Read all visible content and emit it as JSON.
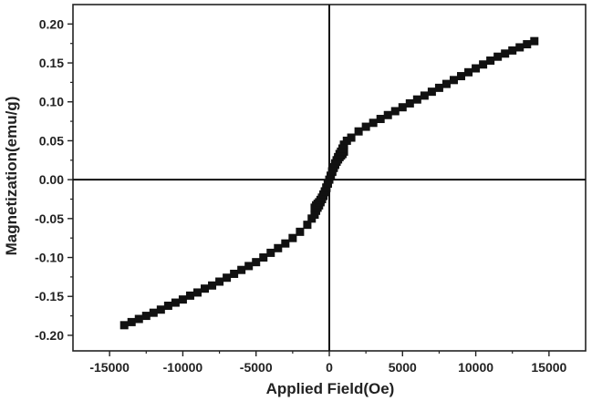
{
  "chart_data": {
    "type": "scatter",
    "title": "",
    "xlabel": "Applied Field(Oe)",
    "ylabel": "Magnetization(emu/g)",
    "xlim": [
      -17500,
      17500
    ],
    "ylim": [
      -0.22,
      0.225
    ],
    "x_ticks": [
      -15000,
      -10000,
      -5000,
      0,
      5000,
      10000,
      15000
    ],
    "y_ticks": [
      -0.2,
      -0.15,
      -0.1,
      -0.05,
      0.0,
      0.05,
      0.1,
      0.15,
      0.2
    ],
    "x_tick_labels": [
      "-15000",
      "-10000",
      "-5000",
      "0",
      "5000",
      "10000",
      "15000"
    ],
    "y_tick_labels": [
      "-0.20",
      "-0.15",
      "-0.10",
      "-0.05",
      "0.00",
      "0.05",
      "0.10",
      "0.15",
      "0.20"
    ],
    "zero_lines": true,
    "grid": false,
    "marker": "square",
    "marker_color": "#111111",
    "series": [
      {
        "name": "",
        "points": [
          [
            -14000,
            -0.187
          ],
          [
            -13500,
            -0.183
          ],
          [
            -13000,
            -0.179
          ],
          [
            -12500,
            -0.175
          ],
          [
            -12000,
            -0.171
          ],
          [
            -11500,
            -0.167
          ],
          [
            -11000,
            -0.162
          ],
          [
            -10500,
            -0.158
          ],
          [
            -10000,
            -0.154
          ],
          [
            -9500,
            -0.149
          ],
          [
            -9000,
            -0.145
          ],
          [
            -8500,
            -0.14
          ],
          [
            -8000,
            -0.136
          ],
          [
            -7500,
            -0.131
          ],
          [
            -7000,
            -0.126
          ],
          [
            -6500,
            -0.121
          ],
          [
            -6000,
            -0.116
          ],
          [
            -5500,
            -0.111
          ],
          [
            -5000,
            -0.106
          ],
          [
            -4500,
            -0.1
          ],
          [
            -4000,
            -0.094
          ],
          [
            -3500,
            -0.088
          ],
          [
            -3000,
            -0.082
          ],
          [
            -2500,
            -0.075
          ],
          [
            -2000,
            -0.067
          ],
          [
            -1500,
            -0.058
          ],
          [
            -1200,
            -0.05
          ],
          [
            -1000,
            -0.045
          ],
          [
            -900,
            -0.04
          ],
          [
            -800,
            -0.036
          ],
          [
            -700,
            -0.033
          ],
          [
            -600,
            -0.029
          ],
          [
            -500,
            -0.025
          ],
          [
            -400,
            -0.021
          ],
          [
            -300,
            -0.016
          ],
          [
            -200,
            -0.011
          ],
          [
            -100,
            -0.005
          ],
          [
            0,
            0.0
          ],
          [
            100,
            0.005
          ],
          [
            200,
            0.01
          ],
          [
            300,
            0.015
          ],
          [
            400,
            0.019
          ],
          [
            500,
            0.023
          ],
          [
            600,
            0.026
          ],
          [
            700,
            0.029
          ],
          [
            800,
            0.031
          ],
          [
            900,
            0.033
          ],
          [
            1000,
            0.036
          ],
          [
            -1000,
            -0.036
          ],
          [
            -900,
            -0.033
          ],
          [
            -800,
            -0.031
          ],
          [
            -700,
            -0.029
          ],
          [
            -600,
            -0.026
          ],
          [
            -500,
            -0.023
          ],
          [
            -400,
            -0.019
          ],
          [
            -300,
            -0.015
          ],
          [
            -200,
            -0.01
          ],
          [
            -100,
            -0.005
          ],
          [
            100,
            0.005
          ],
          [
            200,
            0.011
          ],
          [
            300,
            0.016
          ],
          [
            400,
            0.021
          ],
          [
            500,
            0.025
          ],
          [
            600,
            0.029
          ],
          [
            700,
            0.033
          ],
          [
            800,
            0.036
          ],
          [
            900,
            0.04
          ],
          [
            1000,
            0.045
          ],
          [
            1200,
            0.05
          ],
          [
            1500,
            0.054
          ],
          [
            2000,
            0.062
          ],
          [
            2500,
            0.068
          ],
          [
            3000,
            0.073
          ],
          [
            3500,
            0.078
          ],
          [
            4000,
            0.083
          ],
          [
            4500,
            0.088
          ],
          [
            5000,
            0.093
          ],
          [
            5500,
            0.098
          ],
          [
            6000,
            0.103
          ],
          [
            6500,
            0.108
          ],
          [
            7000,
            0.113
          ],
          [
            7500,
            0.118
          ],
          [
            8000,
            0.123
          ],
          [
            8500,
            0.128
          ],
          [
            9000,
            0.133
          ],
          [
            9500,
            0.138
          ],
          [
            10000,
            0.143
          ],
          [
            10500,
            0.148
          ],
          [
            11000,
            0.153
          ],
          [
            11500,
            0.158
          ],
          [
            12000,
            0.162
          ],
          [
            12500,
            0.166
          ],
          [
            13000,
            0.17
          ],
          [
            13500,
            0.174
          ],
          [
            14000,
            0.178
          ]
        ]
      }
    ]
  }
}
